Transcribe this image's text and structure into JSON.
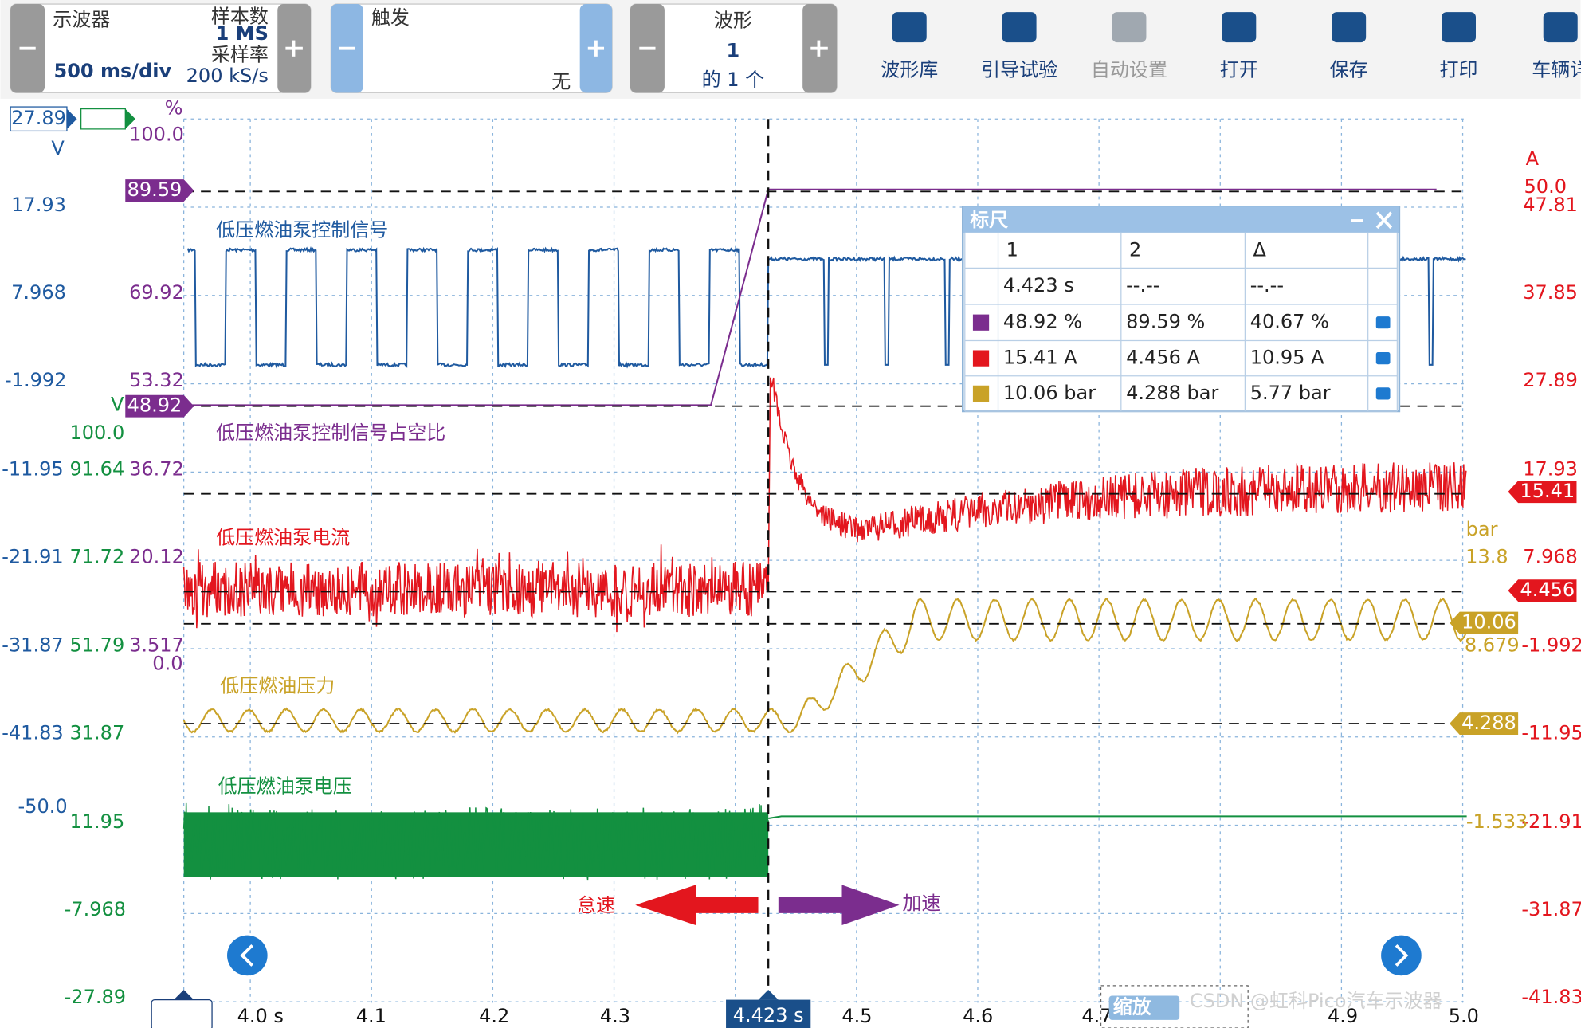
{
  "toolbar": {
    "scope": {
      "title": "示波器",
      "sample_count_label": "样本数",
      "sample_count": "1 MS",
      "sample_rate_label": "采样率",
      "sample_rate": "200 kS/s",
      "timebase": "500 ms/div"
    },
    "trigger": {
      "title": "触发",
      "mode": "无"
    },
    "waveform": {
      "title": "波形",
      "number": "1",
      "of": "的 1 个"
    },
    "buttons": [
      "波形库",
      "引导试验",
      "自动设置",
      "打开",
      "保存",
      "打印",
      "车辆详"
    ]
  },
  "left_v_axis": [
    "27.89",
    "V",
    "17.93",
    "7.968",
    "-1.992",
    "-11.95",
    "-21.91",
    "-31.87",
    "-41.83",
    "-50.0"
  ],
  "left_green_axis": [
    "V",
    "100.0",
    "91.64",
    "71.72",
    "51.79",
    "31.87",
    "11.95",
    "-7.968",
    "-27.89"
  ],
  "left_percent_axis": [
    "%",
    "100.0",
    "89.59",
    "69.92",
    "53.32",
    "48.92",
    "36.72",
    "20.12",
    "3.517",
    "0.0"
  ],
  "right_current_axis": [
    "A",
    "50.0",
    "47.81",
    "37.85",
    "27.89",
    "17.93",
    "15.41",
    "7.968",
    "4.456",
    "-1.992",
    "-11.95",
    "-21.91",
    "-31.87",
    "-41.83"
  ],
  "right_pressure_axis": [
    "bar",
    "13.8",
    "10.06",
    "8.679",
    "4.288",
    "-1.533"
  ],
  "channel_labels": [
    "低压燃油泵控制信号",
    "低压燃油泵控制信号占空比",
    "低压燃油泵电流",
    "低压燃油压力",
    "低压燃油泵电压"
  ],
  "annotations": {
    "idle": "怠速",
    "accelerate": "加速"
  },
  "ruler_panel": {
    "title": "标尺",
    "headers": [
      "1",
      "2",
      "Δ"
    ],
    "time_row": [
      "4.423 s",
      "--.--",
      "--.--"
    ],
    "rows": [
      [
        "48.92 %",
        "89.59 %",
        "40.67 %"
      ],
      [
        "15.41 A",
        "4.456 A",
        "10.95 A"
      ],
      [
        "10.06 bar",
        "4.288 bar",
        "5.77 bar"
      ]
    ]
  },
  "x_axis": [
    "4.0 s",
    "4.1",
    "4.2",
    "4.3",
    "4.5",
    "4.6",
    "4.7",
    "4.9",
    "5.0"
  ],
  "cursor_label": "4.423 s",
  "zoom_label": "缩放",
  "watermark": "CSDN @虹科Pico汽车示波器"
}
